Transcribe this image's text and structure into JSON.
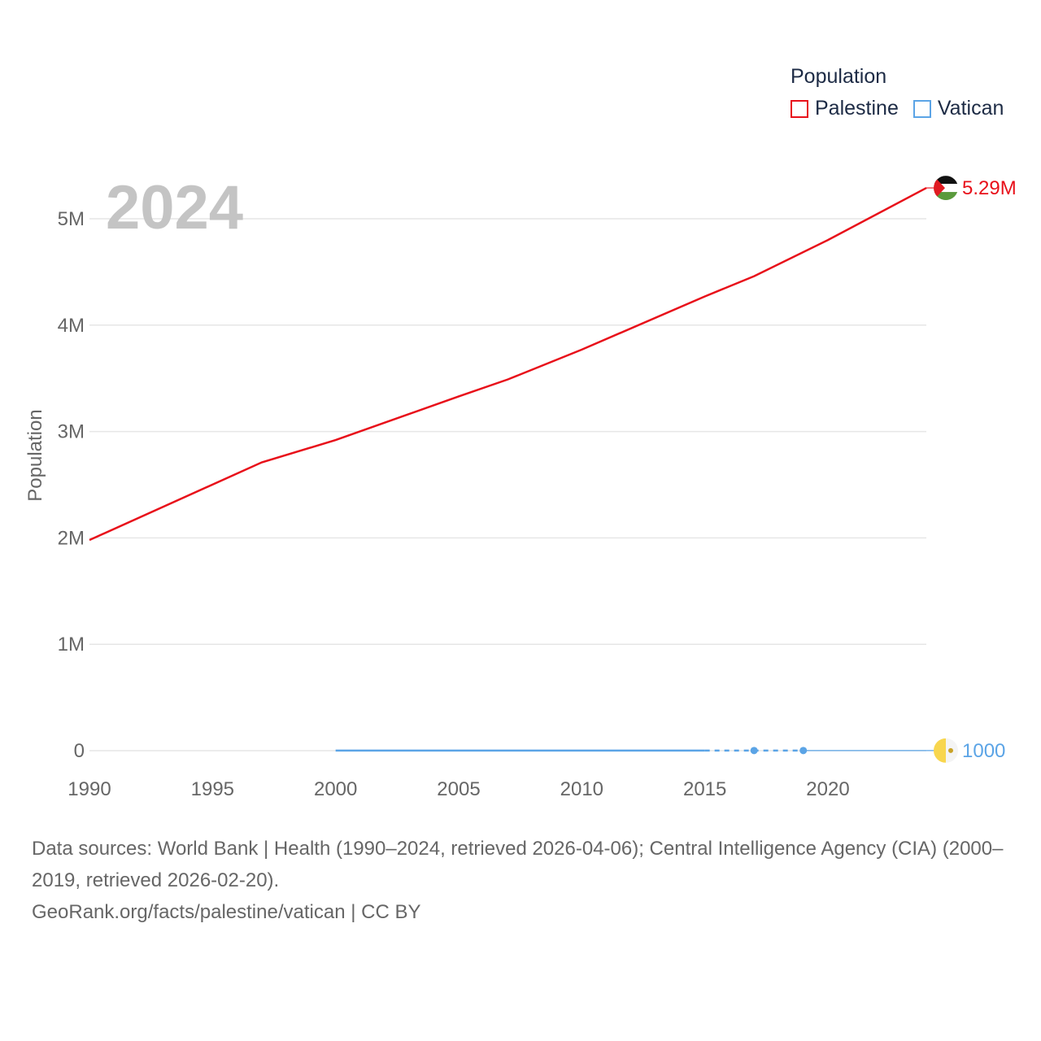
{
  "chart_data": {
    "type": "line",
    "year_label": "2024",
    "ylabel": "Population",
    "xlim": [
      1990,
      2024
    ],
    "ylim": [
      0,
      5500000
    ],
    "x_ticks": [
      1990,
      1995,
      2000,
      2005,
      2010,
      2015,
      2020
    ],
    "y_ticks": [
      {
        "value": 0,
        "label": "0"
      },
      {
        "value": 1000000,
        "label": "1M"
      },
      {
        "value": 2000000,
        "label": "2M"
      },
      {
        "value": 3000000,
        "label": "3M"
      },
      {
        "value": 4000000,
        "label": "4M"
      },
      {
        "value": 5000000,
        "label": "5M"
      }
    ],
    "legend_title": "Population",
    "series": [
      {
        "name": "Palestine",
        "color": "#e8101a",
        "end_label": "5.29M",
        "flag": "palestine-flag",
        "points": [
          [
            1990,
            1980000
          ],
          [
            1997,
            2710000
          ],
          [
            2000,
            2920000
          ],
          [
            2005,
            3330000
          ],
          [
            2007,
            3490000
          ],
          [
            2010,
            3770000
          ],
          [
            2015,
            4270000
          ],
          [
            2017,
            4460000
          ],
          [
            2020,
            4800000
          ],
          [
            2024,
            5290000
          ]
        ]
      },
      {
        "name": "Vatican",
        "color": "#5ba4e6",
        "end_label": "1000",
        "flag": "vatican-flag",
        "points": [
          [
            2000,
            900
          ],
          [
            2015,
            800
          ],
          [
            2017,
            1000
          ],
          [
            2019,
            1000
          ],
          [
            2024,
            1000
          ]
        ],
        "dashed_from": 2015,
        "markers": [
          2017,
          2019
        ]
      }
    ]
  },
  "footer": {
    "sources": "Data sources: World Bank | Health (1990–2024, retrieved 2026-04-06); Central Intelligence Agency (CIA) (2000–2019, retrieved 2026-02-20).",
    "attribution": "GeoRank.org/facts/palestine/vatican | CC BY"
  }
}
